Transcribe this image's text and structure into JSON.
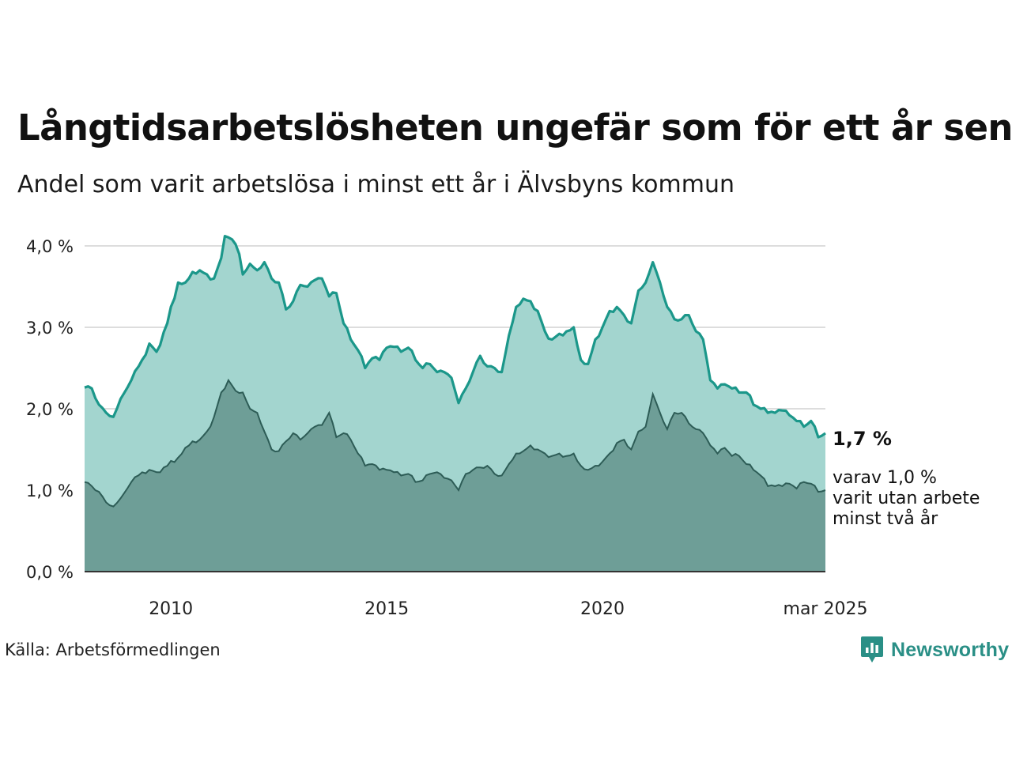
{
  "title": "Långtidsarbetslösheten ungefär som för ett år sen",
  "subtitle": "Andel som varit arbetslösa i minst ett år i Älvsbyns kommun",
  "source": "Källa: Arbetsförmedlingen",
  "brand": "Newsworthy",
  "end_label": {
    "value": "1,7 %",
    "note_lines": [
      "varav 1,0 %",
      "varit utan arbete",
      "minst två år"
    ]
  },
  "colors": {
    "total_line": "#1b978a",
    "total_fill": "#a3d5cf",
    "long_line": "#2d5c56",
    "long_fill": "#6e9e97",
    "brand": "#2a8f86"
  },
  "chart_data": {
    "type": "area",
    "x_start": "2008-01",
    "x_end": "2025-03",
    "frequency": "monthly",
    "x_ticks": [
      {
        "x": "2010-01",
        "label": "2010"
      },
      {
        "x": "2015-01",
        "label": "2015"
      },
      {
        "x": "2020-01",
        "label": "2020"
      },
      {
        "x": "2025-03",
        "label": "mar 2025"
      }
    ],
    "y_ticks": [
      {
        "y": 0,
        "label": "0,0 %"
      },
      {
        "y": 1,
        "label": "1,0 %"
      },
      {
        "y": 2,
        "label": "2,0 %"
      },
      {
        "y": 3,
        "label": "3,0 %"
      },
      {
        "y": 4,
        "label": "4,0 %"
      }
    ],
    "ylim": [
      0,
      4.1
    ],
    "grid": true,
    "series": [
      {
        "key": "total",
        "anchors": [
          [
            "2008-01",
            2.26
          ],
          [
            "2008-03",
            2.25
          ],
          [
            "2008-05",
            2.05
          ],
          [
            "2008-07",
            1.95
          ],
          [
            "2008-09",
            1.9
          ],
          [
            "2008-11",
            2.12
          ],
          [
            "2009-02",
            2.35
          ],
          [
            "2009-05",
            2.6
          ],
          [
            "2009-07",
            2.8
          ],
          [
            "2009-09",
            2.7
          ],
          [
            "2009-12",
            3.05
          ],
          [
            "2010-03",
            3.55
          ],
          [
            "2010-05",
            3.55
          ],
          [
            "2010-07",
            3.68
          ],
          [
            "2010-09",
            3.7
          ],
          [
            "2010-11",
            3.65
          ],
          [
            "2011-01",
            3.6
          ],
          [
            "2011-03",
            3.85
          ],
          [
            "2011-04",
            4.12
          ],
          [
            "2011-06",
            4.08
          ],
          [
            "2011-08",
            3.9
          ],
          [
            "2011-09",
            3.65
          ],
          [
            "2011-11",
            3.78
          ],
          [
            "2012-01",
            3.7
          ],
          [
            "2012-03",
            3.8
          ],
          [
            "2012-05",
            3.6
          ],
          [
            "2012-07",
            3.55
          ],
          [
            "2012-09",
            3.22
          ],
          [
            "2012-11",
            3.32
          ],
          [
            "2013-01",
            3.52
          ],
          [
            "2013-03",
            3.5
          ],
          [
            "2013-05",
            3.58
          ],
          [
            "2013-07",
            3.6
          ],
          [
            "2013-09",
            3.38
          ],
          [
            "2013-11",
            3.42
          ],
          [
            "2014-01",
            3.05
          ],
          [
            "2014-03",
            2.85
          ],
          [
            "2014-05",
            2.72
          ],
          [
            "2014-07",
            2.5
          ],
          [
            "2014-09",
            2.62
          ],
          [
            "2014-11",
            2.6
          ],
          [
            "2015-01",
            2.75
          ],
          [
            "2015-03",
            2.76
          ],
          [
            "2015-05",
            2.7
          ],
          [
            "2015-07",
            2.75
          ],
          [
            "2015-09",
            2.6
          ],
          [
            "2015-11",
            2.5
          ],
          [
            "2016-01",
            2.55
          ],
          [
            "2016-03",
            2.45
          ],
          [
            "2016-05",
            2.45
          ],
          [
            "2016-07",
            2.38
          ],
          [
            "2016-09",
            2.07
          ],
          [
            "2016-11",
            2.25
          ],
          [
            "2017-01",
            2.45
          ],
          [
            "2017-03",
            2.65
          ],
          [
            "2017-05",
            2.52
          ],
          [
            "2017-07",
            2.5
          ],
          [
            "2017-09",
            2.45
          ],
          [
            "2017-11",
            2.9
          ],
          [
            "2018-01",
            3.25
          ],
          [
            "2018-03",
            3.35
          ],
          [
            "2018-05",
            3.32
          ],
          [
            "2018-07",
            3.2
          ],
          [
            "2018-09",
            2.95
          ],
          [
            "2018-11",
            2.85
          ],
          [
            "2019-01",
            2.92
          ],
          [
            "2019-03",
            2.95
          ],
          [
            "2019-05",
            3.0
          ],
          [
            "2019-07",
            2.6
          ],
          [
            "2019-09",
            2.55
          ],
          [
            "2019-11",
            2.85
          ],
          [
            "2020-01",
            3.0
          ],
          [
            "2020-03",
            3.2
          ],
          [
            "2020-05",
            3.25
          ],
          [
            "2020-07",
            3.15
          ],
          [
            "2020-09",
            3.05
          ],
          [
            "2020-11",
            3.45
          ],
          [
            "2021-01",
            3.55
          ],
          [
            "2021-03",
            3.8
          ],
          [
            "2021-05",
            3.55
          ],
          [
            "2021-07",
            3.25
          ],
          [
            "2021-09",
            3.1
          ],
          [
            "2021-11",
            3.1
          ],
          [
            "2022-01",
            3.15
          ],
          [
            "2022-03",
            2.95
          ],
          [
            "2022-05",
            2.85
          ],
          [
            "2022-07",
            2.35
          ],
          [
            "2022-09",
            2.25
          ],
          [
            "2022-11",
            2.3
          ],
          [
            "2023-01",
            2.25
          ],
          [
            "2023-03",
            2.2
          ],
          [
            "2023-05",
            2.2
          ],
          [
            "2023-07",
            2.05
          ],
          [
            "2023-09",
            2.0
          ],
          [
            "2023-11",
            1.95
          ],
          [
            "2024-01",
            1.95
          ],
          [
            "2024-03",
            1.98
          ],
          [
            "2024-05",
            1.92
          ],
          [
            "2024-07",
            1.85
          ],
          [
            "2024-09",
            1.78
          ],
          [
            "2024-11",
            1.85
          ],
          [
            "2025-01",
            1.65
          ],
          [
            "2025-03",
            1.7
          ]
        ]
      },
      {
        "key": "long",
        "anchors": [
          [
            "2008-01",
            1.1
          ],
          [
            "2008-03",
            1.05
          ],
          [
            "2008-05",
            0.98
          ],
          [
            "2008-07",
            0.85
          ],
          [
            "2008-09",
            0.8
          ],
          [
            "2008-11",
            0.9
          ],
          [
            "2009-02",
            1.1
          ],
          [
            "2009-05",
            1.22
          ],
          [
            "2009-07",
            1.25
          ],
          [
            "2009-09",
            1.22
          ],
          [
            "2009-12",
            1.3
          ],
          [
            "2010-03",
            1.4
          ],
          [
            "2010-05",
            1.52
          ],
          [
            "2010-07",
            1.6
          ],
          [
            "2010-09",
            1.62
          ],
          [
            "2010-11",
            1.72
          ],
          [
            "2011-01",
            1.9
          ],
          [
            "2011-03",
            2.2
          ],
          [
            "2011-05",
            2.35
          ],
          [
            "2011-07",
            2.22
          ],
          [
            "2011-09",
            2.2
          ],
          [
            "2011-11",
            2.0
          ],
          [
            "2012-01",
            1.95
          ],
          [
            "2012-03",
            1.72
          ],
          [
            "2012-05",
            1.5
          ],
          [
            "2012-07",
            1.48
          ],
          [
            "2012-09",
            1.6
          ],
          [
            "2012-11",
            1.7
          ],
          [
            "2013-01",
            1.62
          ],
          [
            "2013-03",
            1.7
          ],
          [
            "2013-05",
            1.78
          ],
          [
            "2013-07",
            1.8
          ],
          [
            "2013-09",
            1.95
          ],
          [
            "2013-11",
            1.65
          ],
          [
            "2014-01",
            1.7
          ],
          [
            "2014-03",
            1.62
          ],
          [
            "2014-05",
            1.45
          ],
          [
            "2014-07",
            1.3
          ],
          [
            "2014-09",
            1.32
          ],
          [
            "2014-11",
            1.25
          ],
          [
            "2015-01",
            1.25
          ],
          [
            "2015-03",
            1.22
          ],
          [
            "2015-05",
            1.18
          ],
          [
            "2015-07",
            1.2
          ],
          [
            "2015-09",
            1.1
          ],
          [
            "2015-11",
            1.12
          ],
          [
            "2016-01",
            1.2
          ],
          [
            "2016-03",
            1.22
          ],
          [
            "2016-05",
            1.15
          ],
          [
            "2016-07",
            1.12
          ],
          [
            "2016-09",
            1.0
          ],
          [
            "2016-11",
            1.2
          ],
          [
            "2017-01",
            1.25
          ],
          [
            "2017-03",
            1.28
          ],
          [
            "2017-05",
            1.3
          ],
          [
            "2017-07",
            1.2
          ],
          [
            "2017-09",
            1.18
          ],
          [
            "2017-11",
            1.32
          ],
          [
            "2018-01",
            1.45
          ],
          [
            "2018-03",
            1.48
          ],
          [
            "2018-05",
            1.55
          ],
          [
            "2018-07",
            1.5
          ],
          [
            "2018-09",
            1.45
          ],
          [
            "2018-11",
            1.42
          ],
          [
            "2019-01",
            1.45
          ],
          [
            "2019-03",
            1.42
          ],
          [
            "2019-05",
            1.45
          ],
          [
            "2019-07",
            1.3
          ],
          [
            "2019-09",
            1.25
          ],
          [
            "2019-11",
            1.3
          ],
          [
            "2020-01",
            1.35
          ],
          [
            "2020-03",
            1.45
          ],
          [
            "2020-05",
            1.58
          ],
          [
            "2020-07",
            1.62
          ],
          [
            "2020-09",
            1.5
          ],
          [
            "2020-11",
            1.72
          ],
          [
            "2021-01",
            1.78
          ],
          [
            "2021-03",
            2.18
          ],
          [
            "2021-05",
            1.95
          ],
          [
            "2021-07",
            1.75
          ],
          [
            "2021-09",
            1.95
          ],
          [
            "2021-11",
            1.95
          ],
          [
            "2022-01",
            1.82
          ],
          [
            "2022-03",
            1.75
          ],
          [
            "2022-05",
            1.7
          ],
          [
            "2022-07",
            1.55
          ],
          [
            "2022-09",
            1.45
          ],
          [
            "2022-11",
            1.52
          ],
          [
            "2023-01",
            1.42
          ],
          [
            "2023-03",
            1.42
          ],
          [
            "2023-05",
            1.32
          ],
          [
            "2023-07",
            1.25
          ],
          [
            "2023-09",
            1.18
          ],
          [
            "2023-11",
            1.05
          ],
          [
            "2024-01",
            1.05
          ],
          [
            "2024-03",
            1.05
          ],
          [
            "2024-05",
            1.08
          ],
          [
            "2024-07",
            1.02
          ],
          [
            "2024-09",
            1.1
          ],
          [
            "2024-11",
            1.08
          ],
          [
            "2025-01",
            0.98
          ],
          [
            "2025-03",
            1.0
          ]
        ]
      }
    ]
  }
}
